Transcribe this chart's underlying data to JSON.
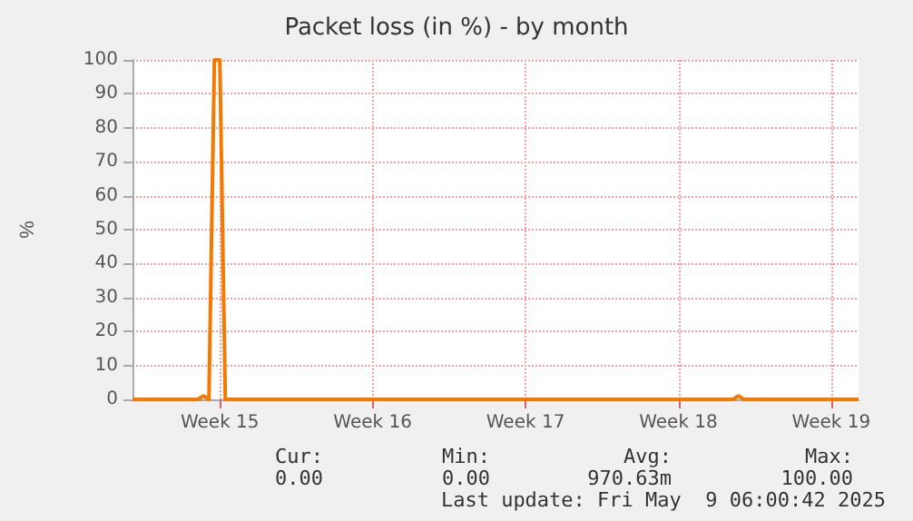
{
  "chart_data": {
    "type": "line",
    "title": "Packet loss (in %) - by month",
    "ylabel": "%",
    "categories": [
      null,
      null,
      null,
      null,
      null,
      null,
      null,
      null,
      null,
      null,
      null,
      null,
      null,
      null,
      null,
      null,
      "Week 15",
      null,
      null,
      null,
      null,
      null,
      null,
      null,
      null,
      null,
      null,
      null,
      null,
      null,
      null,
      null,
      null,
      null,
      null,
      null,
      null,
      null,
      null,
      null,
      null,
      null,
      null,
      null,
      "Week 16",
      null,
      null,
      null,
      null,
      null,
      null,
      null,
      null,
      null,
      null,
      null,
      null,
      null,
      null,
      null,
      null,
      null,
      null,
      null,
      null,
      null,
      null,
      null,
      null,
      null,
      null,
      null,
      "Week 17",
      null,
      null,
      null,
      null,
      null,
      null,
      null,
      null,
      null,
      null,
      null,
      null,
      null,
      null,
      null,
      null,
      null,
      null,
      null,
      null,
      null,
      null,
      null,
      null,
      null,
      null,
      null,
      "Week 18",
      null,
      null,
      null,
      null,
      null,
      null,
      null,
      null,
      null,
      null,
      null,
      null,
      null,
      null,
      null,
      null,
      null,
      null,
      null,
      null,
      null,
      null,
      null,
      null,
      null,
      null,
      null,
      "Week 19",
      null,
      null,
      null,
      null,
      null
    ],
    "series": [
      {
        "color": "#f57900",
        "values": [
          0,
          0,
          0,
          0,
          0,
          0,
          0,
          0,
          0,
          0,
          0,
          0,
          0,
          1,
          0,
          100,
          100,
          0,
          0,
          0,
          0,
          0,
          0,
          0,
          0,
          0,
          0,
          0,
          0,
          0,
          0,
          0,
          0,
          0,
          0,
          0,
          0,
          0,
          0,
          0,
          0,
          0,
          0,
          0,
          0,
          0,
          0,
          0,
          0,
          0,
          0,
          0,
          0,
          0,
          0,
          0,
          0,
          0,
          0,
          0,
          0,
          0,
          0,
          0,
          0,
          0,
          0,
          0,
          0,
          0,
          0,
          0,
          0,
          0,
          0,
          0,
          0,
          0,
          0,
          0,
          0,
          0,
          0,
          0,
          0,
          0,
          0,
          0,
          0,
          0,
          0,
          0,
          0,
          0,
          0,
          0,
          0,
          0,
          0,
          0,
          0,
          0,
          0,
          0,
          0,
          0,
          0,
          0,
          0,
          0,
          0,
          1,
          0,
          0,
          0,
          0,
          0,
          0,
          0,
          0,
          0,
          0,
          0,
          0,
          0,
          0,
          0,
          0,
          0,
          0,
          0,
          0,
          0,
          0
        ]
      }
    ],
    "ylim": [
      0,
      100
    ],
    "yticks": [
      0,
      10,
      20,
      30,
      40,
      50,
      60,
      70,
      80,
      90,
      100
    ],
    "grid": true,
    "marker": "none",
    "line_style": "solid",
    "annotations": [
      "Cur:",
      "Min:",
      "Avg:",
      "Max:",
      "0.00",
      "0.00",
      "970.63m",
      "100.00",
      "Last update: Fri May  9 06:00:42 2025"
    ]
  }
}
